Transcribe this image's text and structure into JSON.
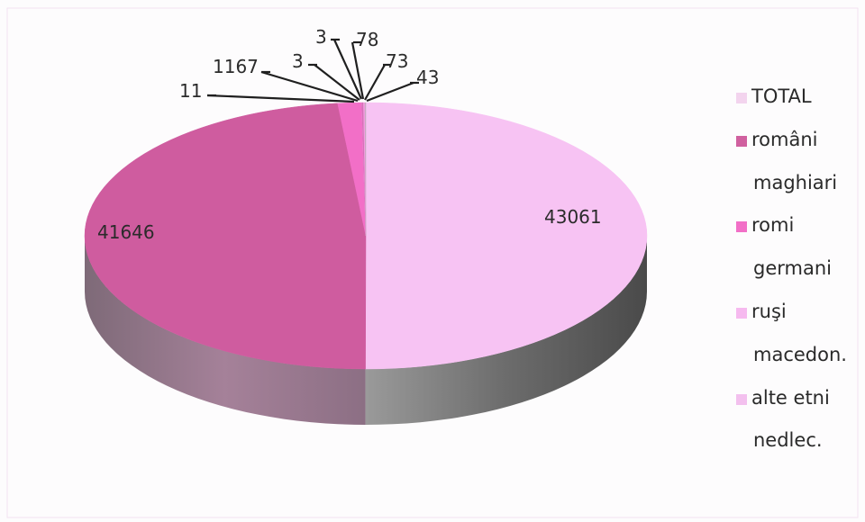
{
  "chart_data": {
    "type": "pie",
    "style": "3d",
    "categories": [
      "TOTAL",
      "români",
      "maghiari",
      "romi",
      "germani",
      "ruşi",
      "macedon.",
      "alte etni",
      "nedlec."
    ],
    "values": [
      43061,
      41646,
      1167,
      11,
      3,
      3,
      78,
      73,
      43
    ],
    "data_labels": [
      "43061",
      "41646",
      "1167",
      "11",
      "3",
      "3",
      "78",
      "73",
      "43"
    ],
    "colors": [
      "#f7c3f3",
      "#cf5c9f",
      "#f26fc7",
      "#f66fd3",
      "#c66bab",
      "#f6b2ee",
      "#d770b8",
      "#f39ae0",
      "#c7a9c0"
    ],
    "legend_placement": "right",
    "legend_swatch": [
      true,
      true,
      false,
      true,
      false,
      true,
      false,
      true,
      false
    ],
    "legend_swatch_colors": [
      "#f3d4ee",
      "#d0609f",
      null,
      "#f26fc7",
      null,
      "#f6b9ef",
      null,
      "#f3c0ee",
      null
    ]
  }
}
